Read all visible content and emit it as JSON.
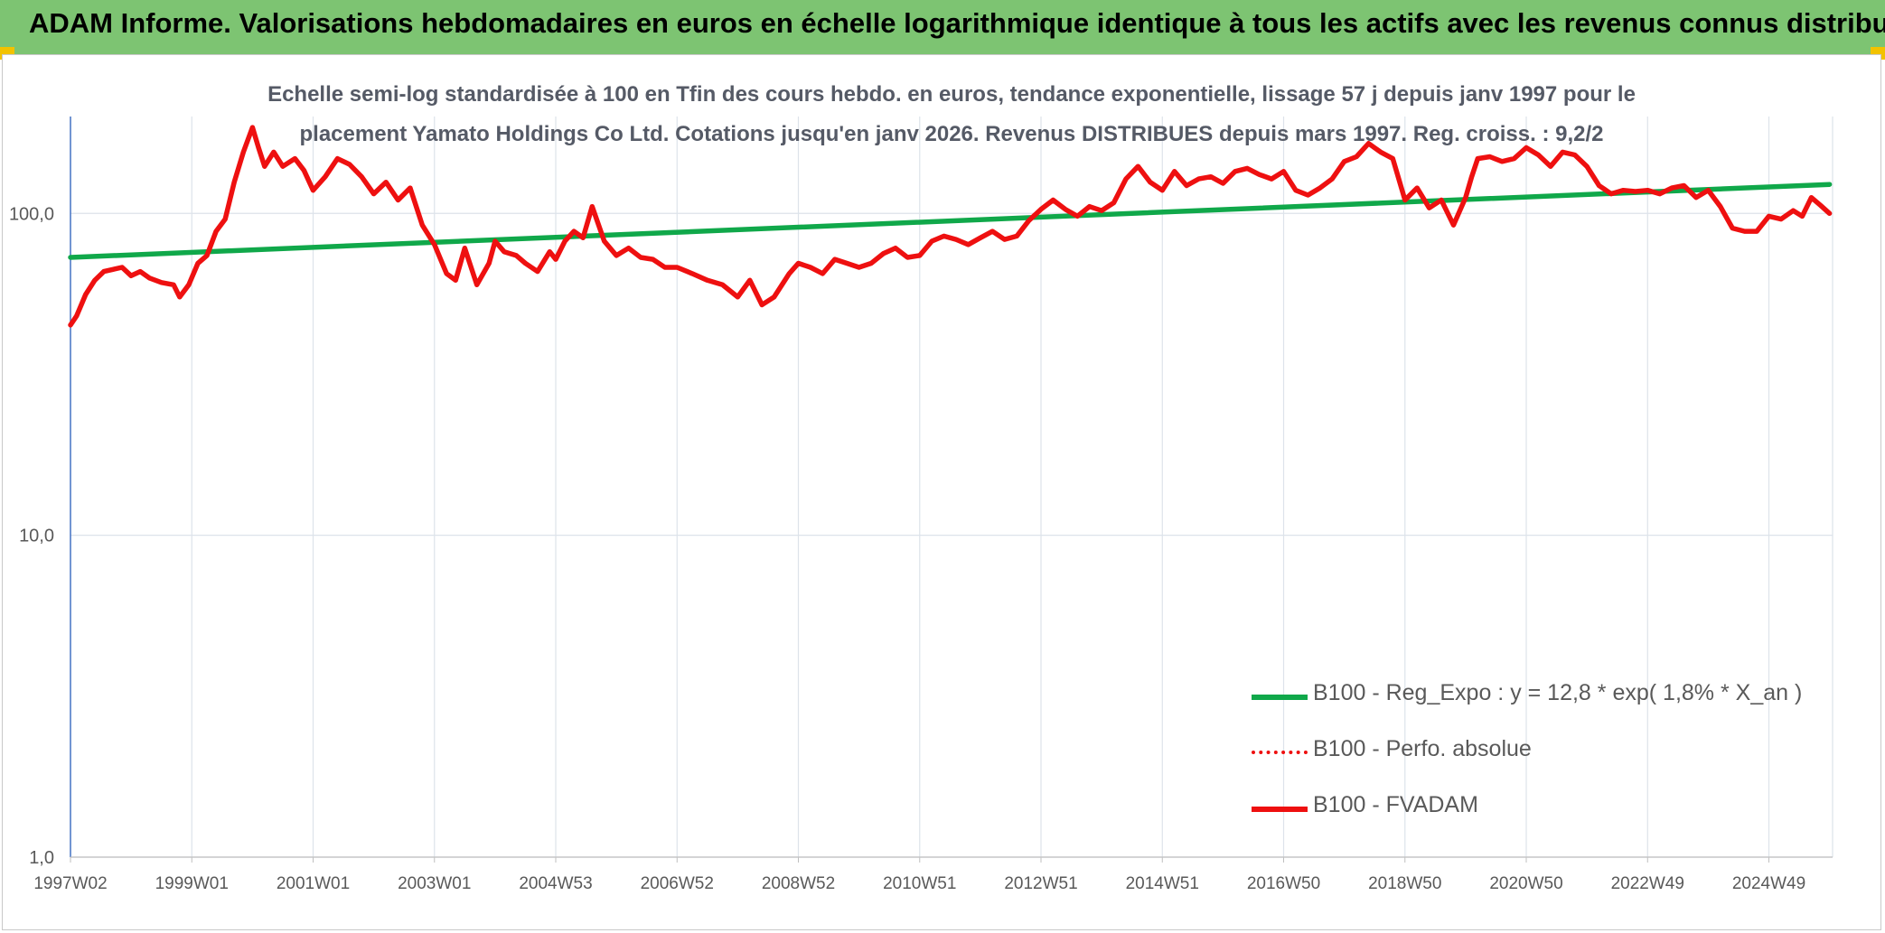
{
  "header": {
    "title": "ADAM Informe. Valorisations hebdomadaires en euros en échelle logarithmique identique à tous les actifs avec les revenus connus distribués"
  },
  "colors": {
    "banner": "#7dc472",
    "corner": "#f2c200",
    "trend": "#10a84a",
    "price": "#ee1010",
    "grid": "#dde3ea",
    "axis": "#4472c4",
    "text": "#595959"
  },
  "chart_data": {
    "type": "line",
    "title_lines": [
      "Echelle semi-log standardisée à 100 en Tfin des cours hebdo. en euros, tendance exponentielle, lissage 57 j depuis janv 1997 pour le",
      "placement Yamato Holdings Co Ltd. Cotations jusqu'en janv 2026. Revenus DISTRIBUES depuis mars 1997. Reg. croiss. : 9,2/2"
    ],
    "y_scale": "log",
    "ylim": [
      1,
      200
    ],
    "y_ticks": [
      {
        "value": 1,
        "label": "1,0"
      },
      {
        "value": 10,
        "label": "10,0"
      },
      {
        "value": 100,
        "label": "100,0"
      }
    ],
    "xlim": [
      1997.0,
      2026.05
    ],
    "x_ticks": [
      {
        "value": 1997.0,
        "label": "1997W02"
      },
      {
        "value": 1999.0,
        "label": "1999W01"
      },
      {
        "value": 2001.0,
        "label": "2001W01"
      },
      {
        "value": 2003.0,
        "label": "2003W01"
      },
      {
        "value": 2005.0,
        "label": "2004W53"
      },
      {
        "value": 2007.0,
        "label": "2006W52"
      },
      {
        "value": 2009.0,
        "label": "2008W52"
      },
      {
        "value": 2011.0,
        "label": "2010W51"
      },
      {
        "value": 2013.0,
        "label": "2012W51"
      },
      {
        "value": 2015.0,
        "label": "2014W51"
      },
      {
        "value": 2017.0,
        "label": "2016W50"
      },
      {
        "value": 2019.0,
        "label": "2018W50"
      },
      {
        "value": 2021.0,
        "label": "2020W50"
      },
      {
        "value": 2023.0,
        "label": "2022W49"
      },
      {
        "value": 2025.0,
        "label": "2024W49"
      }
    ],
    "grid": true,
    "legend_position": "right",
    "series": [
      {
        "name": "B100 - Reg_Expo : y = 12,8 * exp( 1,8% *  X_an )",
        "style": "solid-thick",
        "color": "#10a84a",
        "x": [
          1997.0,
          2026.0
        ],
        "y": [
          73,
          123
        ]
      },
      {
        "name": "B100 - Perfo. absolue",
        "style": "dotted",
        "color": "#ee1010",
        "x": [],
        "y": []
      },
      {
        "name": "B100 - FVADAM",
        "style": "solid-thick",
        "color": "#ee1010",
        "x": [
          1997.0,
          1997.1,
          1997.25,
          1997.4,
          1997.55,
          1997.7,
          1997.85,
          1998.0,
          1998.15,
          1998.3,
          1998.5,
          1998.7,
          1998.8,
          1998.95,
          1999.1,
          1999.25,
          1999.4,
          1999.55,
          1999.7,
          1999.85,
          2000.0,
          2000.1,
          2000.2,
          2000.35,
          2000.5,
          2000.7,
          2000.85,
          2001.0,
          2001.2,
          2001.4,
          2001.6,
          2001.8,
          2002.0,
          2002.2,
          2002.4,
          2002.6,
          2002.8,
          2003.0,
          2003.2,
          2003.35,
          2003.5,
          2003.7,
          2003.9,
          2004.0,
          2004.15,
          2004.35,
          2004.5,
          2004.7,
          2004.9,
          2005.0,
          2005.15,
          2005.3,
          2005.45,
          2005.6,
          2005.8,
          2006.0,
          2006.2,
          2006.4,
          2006.6,
          2006.8,
          2007.0,
          2007.25,
          2007.5,
          2007.75,
          2008.0,
          2008.2,
          2008.4,
          2008.6,
          2008.85,
          2009.0,
          2009.2,
          2009.4,
          2009.6,
          2009.8,
          2010.0,
          2010.2,
          2010.4,
          2010.6,
          2010.8,
          2011.0,
          2011.2,
          2011.4,
          2011.6,
          2011.8,
          2012.0,
          2012.2,
          2012.4,
          2012.6,
          2012.8,
          2013.0,
          2013.2,
          2013.4,
          2013.6,
          2013.8,
          2014.0,
          2014.2,
          2014.4,
          2014.6,
          2014.8,
          2015.0,
          2015.2,
          2015.4,
          2015.6,
          2015.8,
          2016.0,
          2016.2,
          2016.4,
          2016.6,
          2016.8,
          2017.0,
          2017.2,
          2017.4,
          2017.6,
          2017.8,
          2018.0,
          2018.2,
          2018.4,
          2018.6,
          2018.8,
          2019.0,
          2019.2,
          2019.4,
          2019.6,
          2019.8,
          2020.0,
          2020.1,
          2020.2,
          2020.4,
          2020.6,
          2020.8,
          2021.0,
          2021.2,
          2021.4,
          2021.6,
          2021.8,
          2022.0,
          2022.2,
          2022.4,
          2022.6,
          2022.8,
          2023.0,
          2023.2,
          2023.4,
          2023.6,
          2023.8,
          2024.0,
          2024.2,
          2024.4,
          2024.6,
          2024.8,
          2025.0,
          2025.2,
          2025.4,
          2025.55,
          2025.7,
          2025.85,
          2026.0
        ],
        "y": [
          45,
          48,
          56,
          62,
          66,
          67,
          68,
          64,
          66,
          63,
          61,
          60,
          55,
          60,
          70,
          74,
          88,
          96,
          125,
          155,
          185,
          160,
          140,
          155,
          140,
          148,
          136,
          118,
          130,
          148,
          142,
          130,
          115,
          125,
          110,
          120,
          92,
          80,
          65,
          62,
          78,
          60,
          70,
          82,
          76,
          74,
          70,
          66,
          76,
          72,
          82,
          88,
          84,
          105,
          82,
          74,
          78,
          73,
          72,
          68,
          68,
          65,
          62,
          60,
          55,
          62,
          52,
          55,
          65,
          70,
          68,
          65,
          72,
          70,
          68,
          70,
          75,
          78,
          73,
          74,
          82,
          85,
          83,
          80,
          84,
          88,
          83,
          85,
          95,
          103,
          110,
          103,
          98,
          105,
          102,
          108,
          128,
          140,
          125,
          118,
          135,
          122,
          128,
          130,
          124,
          135,
          138,
          132,
          128,
          135,
          118,
          114,
          120,
          128,
          145,
          150,
          165,
          155,
          148,
          110,
          120,
          104,
          110,
          92,
          112,
          130,
          148,
          150,
          145,
          148,
          160,
          152,
          140,
          155,
          152,
          140,
          122,
          115,
          118,
          117,
          118,
          115,
          120,
          122,
          112,
          118,
          105,
          90,
          88,
          88,
          98,
          96,
          102,
          98,
          112,
          106,
          100
        ]
      }
    ]
  }
}
